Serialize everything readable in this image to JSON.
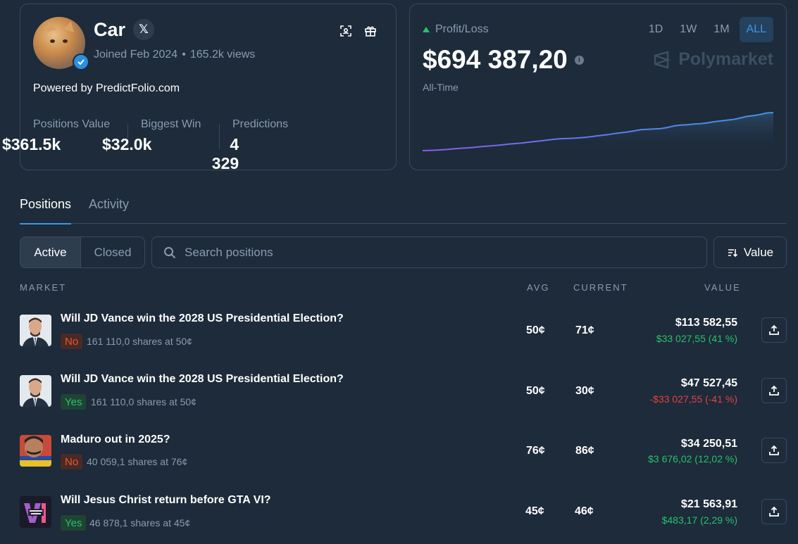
{
  "profile": {
    "name": "Car",
    "x_label": "𝕏",
    "joined": "Joined Feb 2024",
    "separator": "•",
    "views": "165.2k views",
    "powered_by": "Powered by PredictFolio.com",
    "stats": [
      {
        "label": "Positions Value",
        "value": "$361.5k"
      },
      {
        "label": "Biggest Win",
        "value": "$32.0k"
      },
      {
        "label": "Predictions",
        "value": "4 329"
      }
    ]
  },
  "pnl": {
    "label": "Profit/Loss",
    "value": "$694 387,20",
    "period": "All-Time",
    "ranges": [
      "1D",
      "1W",
      "1M",
      "ALL"
    ],
    "active_range": "ALL",
    "brand": "Polymarket",
    "info_glyph": "i",
    "accent": "#3b98e8",
    "sparkline_series": [
      0,
      0.5,
      1.2,
      2.5,
      3.5,
      5,
      6.5,
      7.5,
      9,
      10.5,
      12,
      13.5,
      15,
      17,
      18.5,
      20,
      22,
      24,
      26,
      28,
      30,
      31.5,
      32,
      33,
      34,
      35.5,
      38,
      40,
      42,
      45,
      47,
      49,
      52,
      55,
      56,
      57,
      58,
      61,
      65,
      67,
      68,
      70,
      71,
      73,
      76,
      78,
      80,
      82,
      86,
      90,
      92,
      95,
      99,
      100
    ]
  },
  "tabs": {
    "positions": "Positions",
    "activity": "Activity"
  },
  "filters": {
    "active": "Active",
    "closed": "Closed",
    "search_placeholder": "Search positions",
    "sort_label": "Value"
  },
  "table": {
    "headers": {
      "market": "MARKET",
      "avg": "AVG",
      "current": "CURRENT",
      "value": "VALUE"
    },
    "rows": [
      {
        "question": "Will JD Vance win the 2028 US Presidential Election?",
        "outcome": "No",
        "shares": "161 110,0 shares at 50¢",
        "avg": "50¢",
        "current": "71¢",
        "value": "$113 582,55",
        "pl": "$33 027,55 (41 %)",
        "pl_sign": "pos",
        "thumb": "vance"
      },
      {
        "question": "Will JD Vance win the 2028 US Presidential Election?",
        "outcome": "Yes",
        "shares": "161 110,0 shares at 50¢",
        "avg": "50¢",
        "current": "30¢",
        "value": "$47 527,45",
        "pl": "-$33 027,55 (-41 %)",
        "pl_sign": "neg",
        "thumb": "vance"
      },
      {
        "question": "Maduro out in 2025?",
        "outcome": "No",
        "shares": "40 059,1 shares at 76¢",
        "avg": "76¢",
        "current": "86¢",
        "value": "$34 250,51",
        "pl": "$3 676,02 (12,02 %)",
        "pl_sign": "pos",
        "thumb": "maduro"
      },
      {
        "question": "Will Jesus Christ return before GTA VI?",
        "outcome": "Yes",
        "shares": "46 878,1 shares at 45¢",
        "avg": "45¢",
        "current": "46¢",
        "value": "$21 563,91",
        "pl": "$483,17 (2,29 %)",
        "pl_sign": "pos",
        "thumb": "gta"
      }
    ]
  }
}
